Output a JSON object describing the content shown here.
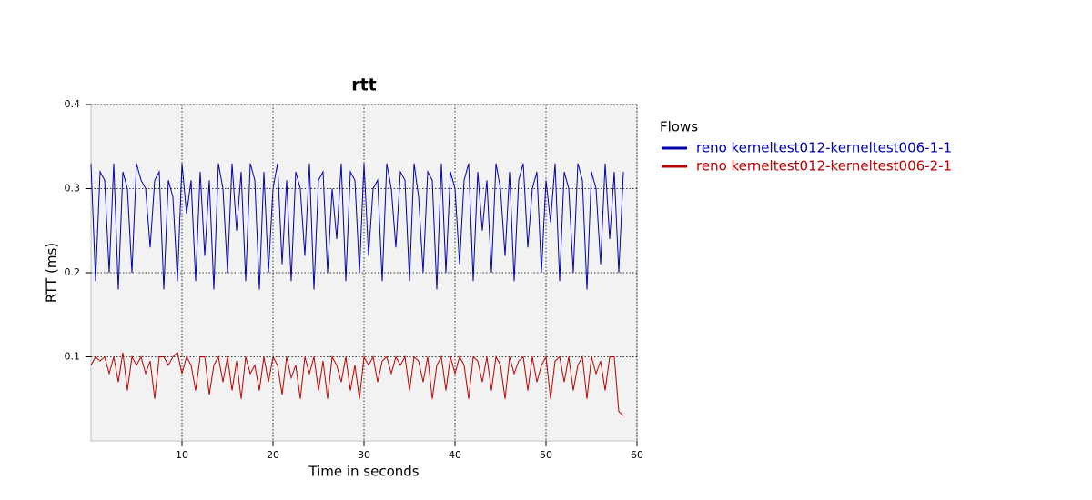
{
  "chart_data": {
    "type": "line",
    "title": "rtt",
    "x_label": "Time in seconds",
    "y_label": "RTT (ms)",
    "legend_title": "Flows",
    "legend": "right",
    "grid": true,
    "xlim": [
      0,
      60
    ],
    "xticks": [
      10,
      20,
      30,
      40,
      50,
      60
    ],
    "ylim": [
      0,
      0.4
    ],
    "yticks": [
      0.1,
      0.2,
      0.3,
      0.4
    ],
    "x": [
      0,
      0.5,
      1,
      1.5,
      2,
      2.5,
      3,
      3.5,
      4,
      4.5,
      5,
      5.5,
      6,
      6.5,
      7,
      7.5,
      8,
      8.5,
      9,
      9.5,
      10,
      10.5,
      11,
      11.5,
      12,
      12.5,
      13,
      13.5,
      14,
      14.5,
      15,
      15.5,
      16,
      16.5,
      17,
      17.5,
      18,
      18.5,
      19,
      19.5,
      20,
      20.5,
      21,
      21.5,
      22,
      22.5,
      23,
      23.5,
      24,
      24.5,
      25,
      25.5,
      26,
      26.5,
      27,
      27.5,
      28,
      28.5,
      29,
      29.5,
      30,
      30.5,
      31,
      31.5,
      32,
      32.5,
      33,
      33.5,
      34,
      34.5,
      35,
      35.5,
      36,
      36.5,
      37,
      37.5,
      38,
      38.5,
      39,
      39.5,
      40,
      40.5,
      41,
      41.5,
      42,
      42.5,
      43,
      43.5,
      44,
      44.5,
      45,
      45.5,
      46,
      46.5,
      47,
      47.5,
      48,
      48.5,
      49,
      49.5,
      50,
      50.5,
      51,
      51.5,
      52,
      52.5,
      53,
      53.5,
      54,
      54.5,
      55,
      55.5,
      56,
      56.5,
      57,
      57.5,
      58,
      58.5
    ],
    "series": [
      {
        "name": "reno kerneltest012-kerneltest006-1-1",
        "color": "#0000aa",
        "values": [
          0.33,
          0.19,
          0.32,
          0.31,
          0.2,
          0.33,
          0.18,
          0.32,
          0.3,
          0.2,
          0.33,
          0.31,
          0.3,
          0.23,
          0.31,
          0.32,
          0.18,
          0.31,
          0.29,
          0.19,
          0.33,
          0.27,
          0.31,
          0.19,
          0.32,
          0.22,
          0.31,
          0.18,
          0.33,
          0.3,
          0.2,
          0.33,
          0.25,
          0.32,
          0.19,
          0.33,
          0.31,
          0.18,
          0.32,
          0.2,
          0.3,
          0.33,
          0.21,
          0.31,
          0.19,
          0.32,
          0.3,
          0.22,
          0.33,
          0.18,
          0.31,
          0.32,
          0.2,
          0.3,
          0.24,
          0.33,
          0.19,
          0.32,
          0.31,
          0.2,
          0.33,
          0.22,
          0.3,
          0.31,
          0.19,
          0.33,
          0.3,
          0.23,
          0.32,
          0.31,
          0.19,
          0.33,
          0.29,
          0.2,
          0.32,
          0.31,
          0.18,
          0.33,
          0.2,
          0.32,
          0.3,
          0.21,
          0.31,
          0.33,
          0.19,
          0.32,
          0.25,
          0.31,
          0.2,
          0.33,
          0.3,
          0.22,
          0.32,
          0.19,
          0.31,
          0.33,
          0.23,
          0.3,
          0.32,
          0.2,
          0.31,
          0.26,
          0.33,
          0.19,
          0.32,
          0.3,
          0.2,
          0.33,
          0.31,
          0.18,
          0.32,
          0.3,
          0.21,
          0.33,
          0.24,
          0.32,
          0.2,
          0.32
        ]
      },
      {
        "name": "reno kerneltest012-kerneltest006-2-1",
        "color": "#bb0000",
        "values": [
          0.09,
          0.1,
          0.095,
          0.1,
          0.08,
          0.1,
          0.07,
          0.105,
          0.06,
          0.1,
          0.09,
          0.1,
          0.08,
          0.095,
          0.05,
          0.1,
          0.1,
          0.09,
          0.1,
          0.105,
          0.08,
          0.1,
          0.09,
          0.06,
          0.1,
          0.1,
          0.055,
          0.09,
          0.1,
          0.07,
          0.1,
          0.06,
          0.095,
          0.05,
          0.1,
          0.08,
          0.09,
          0.06,
          0.1,
          0.07,
          0.1,
          0.09,
          0.055,
          0.1,
          0.075,
          0.09,
          0.05,
          0.1,
          0.08,
          0.1,
          0.06,
          0.095,
          0.05,
          0.1,
          0.09,
          0.07,
          0.1,
          0.06,
          0.09,
          0.05,
          0.1,
          0.09,
          0.1,
          0.07,
          0.095,
          0.1,
          0.08,
          0.1,
          0.09,
          0.1,
          0.06,
          0.1,
          0.095,
          0.07,
          0.1,
          0.05,
          0.09,
          0.1,
          0.06,
          0.1,
          0.08,
          0.1,
          0.09,
          0.05,
          0.1,
          0.095,
          0.07,
          0.1,
          0.06,
          0.1,
          0.09,
          0.05,
          0.1,
          0.08,
          0.095,
          0.1,
          0.06,
          0.1,
          0.07,
          0.09,
          0.1,
          0.05,
          0.095,
          0.1,
          0.07,
          0.1,
          0.06,
          0.09,
          0.1,
          0.05,
          0.1,
          0.08,
          0.095,
          0.06,
          0.1,
          0.1,
          0.035,
          0.03
        ]
      }
    ]
  }
}
